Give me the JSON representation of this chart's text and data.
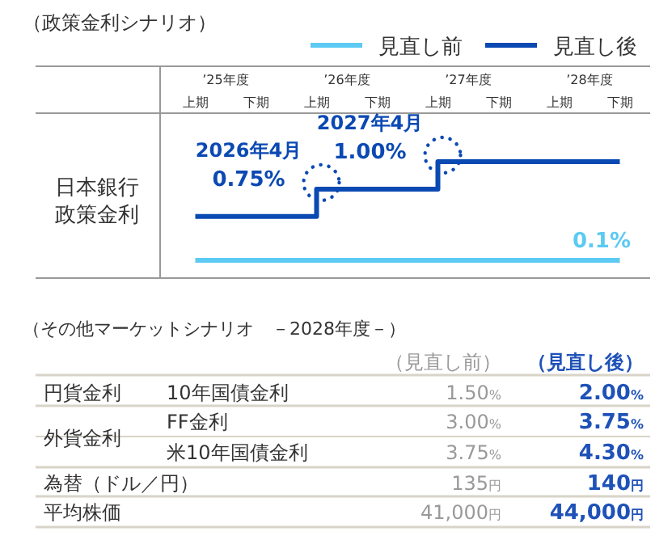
{
  "chart_data": [
    {
      "type": "step",
      "title": "（政策金利シナリオ）",
      "ylabel": "日本銀行政策金利",
      "legend": "top right",
      "grid": false,
      "categories": [
        "上期",
        "下期",
        "上期",
        "下期",
        "上期",
        "下期",
        "上期",
        "下期"
      ],
      "series": [
        {
          "name": "見直し前",
          "color": "#5ccaf2",
          "values": [
            0.1,
            0.1,
            0.1,
            0.1,
            0.1,
            0.1,
            0.1,
            0.1
          ],
          "value_labels": [
            null,
            null,
            null,
            null,
            null,
            null,
            null,
            "0.1%"
          ]
        },
        {
          "name": "見直し後",
          "color": "#0b49b3",
          "values": [
            0.5,
            0.5,
            0.75,
            0.75,
            1.0,
            1.0,
            1.0,
            1.0
          ],
          "value_labels": [
            null,
            null,
            "0.75%",
            null,
            "1.00%",
            null,
            null,
            null
          ]
        }
      ],
      "annotations": [
        "’25年度",
        "’26年度",
        "’27年度",
        "’28年度",
        "2026年4月",
        "2027年4月"
      ]
    },
    {
      "type": "other",
      "title": "（その他マーケットシナリオ　－2028年度－）",
      "annotations": [
        "（見直し前）",
        "（見直し後）",
        "円貨金利",
        "10年国債金利",
        "1.50%",
        "2.00%",
        "外貨金利",
        "FF金利",
        "3.00%",
        "3.75%",
        "米10年国債金利",
        "3.75%",
        "4.30%",
        "為替（ドル／円）",
        "135円",
        "140円",
        "平均株価",
        "41,000円",
        "44,000円"
      ]
    }
  ]
}
